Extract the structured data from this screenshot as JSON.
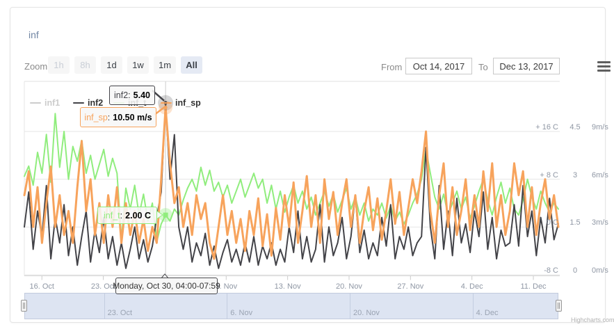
{
  "header": {
    "title": "inf"
  },
  "toolbar": {
    "zoom_label": "Zoom",
    "zoom_buttons": [
      {
        "label": "1h",
        "state": "disabled"
      },
      {
        "label": "8h",
        "state": "disabled"
      },
      {
        "label": "1d",
        "state": "normal"
      },
      {
        "label": "1w",
        "state": "normal"
      },
      {
        "label": "1m",
        "state": "normal"
      },
      {
        "label": "All",
        "state": "selected"
      }
    ],
    "from_label": "From",
    "from_value": "Oct 14, 2017",
    "to_label": "To",
    "to_value": "Dec 13, 2017",
    "menu_icon": "hamburger-icon"
  },
  "legend": {
    "items": [
      {
        "name": "inf1",
        "color": "#7cb5ec",
        "visible": false
      },
      {
        "name": "inf2",
        "color": "#434348",
        "visible": true
      },
      {
        "name": "inf_t",
        "color": "#90ed7d",
        "visible": true
      },
      {
        "name": "inf_sp",
        "color": "#f7a35c",
        "visible": true
      }
    ]
  },
  "tooltips": {
    "inf2": {
      "series": "inf2",
      "value": "5.40"
    },
    "inf_sp": {
      "series": "inf_sp",
      "value": "10.50 m/s"
    },
    "inf_t": {
      "series": "inf_t",
      "value": "2.00 C"
    },
    "date": {
      "text": "Monday, Oct 30, 04:00-07:59"
    }
  },
  "chart_data": {
    "type": "line",
    "title": "inf",
    "x_axis": {
      "type": "datetime",
      "range": [
        "Oct 14, 2017",
        "Dec 13, 2017"
      ],
      "span_days": 60.85,
      "tick_labels": [
        "16. Oct",
        "23. Oct",
        "30. Oct",
        "6. Nov",
        "13. Nov",
        "20. Nov",
        "27. Nov",
        "4. Dec",
        "11. Dec"
      ],
      "tick_days": [
        2,
        9,
        16,
        23,
        30,
        37,
        44,
        51,
        58
      ],
      "grid": false
    },
    "y_axes": [
      {
        "id": "temp",
        "labels": [
          "+ 16 C",
          "+ 8 C",
          "0 C",
          "-8 C"
        ],
        "min": -8,
        "max": 16,
        "grid": true
      },
      {
        "id": "inf2",
        "labels": [
          "4.5",
          "3",
          "1.5",
          "0"
        ],
        "min": 0,
        "max": 4.5,
        "grid": false
      },
      {
        "id": "speed",
        "labels": [
          "9m/s",
          "6m/s",
          "3m/s",
          "0m/s"
        ],
        "min": 0,
        "max": 9,
        "grid": false
      }
    ],
    "series": [
      {
        "name": "inf1",
        "axis": "inf2",
        "color": "#7cb5ec",
        "visible": false,
        "width": 2,
        "values": []
      },
      {
        "name": "inf_t",
        "axis": "temp",
        "color": "#90ed7d",
        "visible": true,
        "width": 2,
        "values": [
          8.5,
          10.2,
          7.0,
          12.5,
          9.0,
          15.5,
          7.5,
          19.0,
          10.0,
          16.0,
          8.0,
          13.5,
          11.0,
          14.5,
          9.0,
          12.0,
          8.0,
          10.5,
          13.0,
          8.5,
          11.5,
          9.0,
          -2.0,
          6.5,
          3.0,
          7.0,
          2.0,
          5.5,
          1.0,
          4.0,
          -2.5,
          0.5,
          2.0,
          1.0,
          3.0,
          2.0,
          4.5,
          6.5,
          8.0,
          6.0,
          10.0,
          7.0,
          9.5,
          6.0,
          7.5,
          5.0,
          7.0,
          4.0,
          6.0,
          8.0,
          5.0,
          7.0,
          9.0,
          6.5,
          8.0,
          4.0,
          7.0,
          3.0,
          6.0,
          2.5,
          5.0,
          7.0,
          4.0,
          6.0,
          3.0,
          5.0,
          2.0,
          4.0,
          6.0,
          3.5,
          5.5,
          2.5,
          4.5,
          6.5,
          3.0,
          5.0,
          2.0,
          4.0,
          1.0,
          3.0,
          2.0,
          4.0,
          1.5,
          3.5,
          1.0,
          2.5,
          0.5,
          2.0,
          4.0,
          5.5,
          8.0,
          13.0,
          9.0,
          5.0,
          3.0,
          5.5,
          2.0,
          4.0,
          6.0,
          3.0,
          5.0,
          1.5,
          3.5,
          6.0,
          8.0,
          4.5,
          2.0,
          5.0,
          7.5,
          4.0,
          6.5,
          3.0,
          2.0,
          4.5,
          8.0,
          5.0,
          3.0,
          6.0,
          4.0,
          2.5,
          4.0,
          3.0
        ]
      },
      {
        "name": "inf2",
        "axis": "inf2",
        "color": "#434348",
        "visible": true,
        "width": 2,
        "values": [
          1.5,
          2.6,
          0.8,
          2.0,
          1.2,
          2.8,
          0.5,
          1.8,
          1.0,
          2.2,
          0.6,
          1.5,
          0.3,
          1.2,
          2.0,
          0.4,
          1.4,
          0.7,
          1.8,
          0.5,
          1.2,
          0.3,
          1.0,
          0.2,
          0.8,
          1.5,
          0.5,
          1.1,
          0.4,
          0.9,
          1.8,
          2.6,
          5.4,
          3.0,
          4.4,
          1.5,
          0.8,
          1.5,
          0.4,
          1.0,
          0.6,
          1.3,
          0.3,
          0.9,
          0.2,
          0.7,
          1.1,
          0.4,
          0.8,
          0.3,
          1.0,
          0.4,
          1.2,
          0.3,
          0.9,
          0.5,
          1.0,
          0.3,
          0.8,
          0.4,
          1.5,
          0.7,
          2.0,
          0.5,
          1.2,
          0.4,
          0.8,
          2.2,
          0.4,
          1.5,
          0.6,
          1.0,
          1.8,
          0.5,
          1.2,
          2.5,
          0.7,
          1.4,
          0.5,
          1.0,
          0.6,
          1.8,
          0.9,
          2.2,
          0.5,
          1.2,
          0.8,
          1.5,
          0.6,
          1.0,
          1.2,
          4.0,
          1.5,
          0.5,
          2.8,
          0.8,
          2.0,
          0.6,
          2.4,
          1.0,
          1.6,
          0.7,
          2.0,
          1.2,
          2.6,
          0.8,
          1.8,
          0.5,
          1.4,
          0.9,
          1.0,
          2.2,
          0.9,
          2.8,
          1.2,
          2.0,
          0.6,
          1.8,
          1.0,
          2.4,
          1.1,
          1.6
        ]
      },
      {
        "name": "inf_sp",
        "axis": "speed",
        "color": "#f7a35c",
        "visible": true,
        "width": 3,
        "values": [
          5.0,
          6.5,
          3.0,
          5.5,
          2.0,
          4.5,
          6.8,
          3.0,
          5.0,
          2.5,
          4.0,
          2.0,
          5.5,
          8.4,
          4.0,
          6.0,
          2.5,
          4.5,
          2.0,
          5.0,
          3.0,
          5.5,
          2.0,
          4.5,
          2.5,
          4.0,
          2.0,
          3.5,
          1.5,
          3.0,
          2.0,
          6.0,
          10.5,
          7.0,
          4.5,
          5.5,
          3.0,
          4.5,
          2.5,
          5.0,
          3.5,
          4.5,
          2.0,
          1.0,
          3.0,
          5.0,
          2.5,
          4.0,
          2.0,
          3.5,
          1.5,
          4.0,
          2.5,
          4.8,
          1.8,
          3.8,
          1.2,
          4.2,
          2.2,
          5.0,
          3.0,
          5.8,
          2.0,
          4.0,
          6.2,
          3.0,
          5.0,
          2.0,
          6.0,
          3.5,
          5.2,
          2.5,
          4.5,
          6.0,
          3.0,
          5.0,
          2.0,
          4.0,
          5.5,
          2.8,
          4.8,
          2.2,
          4.0,
          6.0,
          3.2,
          5.2,
          2.5,
          4.2,
          6.0,
          4.5,
          6.5,
          9.0,
          4.0,
          2.0,
          5.0,
          7.0,
          3.0,
          5.5,
          2.5,
          4.0,
          6.0,
          2.8,
          5.0,
          3.0,
          6.5,
          4.0,
          7.0,
          3.0,
          5.0,
          2.5,
          4.0,
          7.0,
          5.0,
          6.5,
          3.0,
          5.5,
          2.5,
          4.5,
          6.0,
          3.5,
          5.0,
          3.0
        ]
      }
    ],
    "hover": {
      "index": 32,
      "x_label": "Monday, Oct 30, 04:00-07:59",
      "points": {
        "inf2": "5.40",
        "inf_t": "2.00 C",
        "inf_sp": "10.50 m/s"
      }
    },
    "legend_position": "top"
  },
  "navigator": {
    "labels": [
      "23. Oct",
      "6. Nov",
      "20. Nov",
      "4. Dec"
    ],
    "label_days": [
      9,
      23,
      37,
      51
    ]
  },
  "credits": "Highcharts.com"
}
